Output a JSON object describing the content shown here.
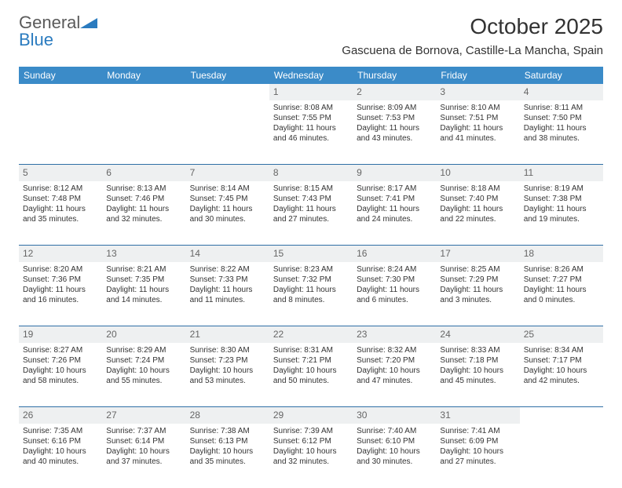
{
  "logo": {
    "text1": "General",
    "text2": "Blue",
    "tri_color": "#2a7bbf"
  },
  "title": "October 2025",
  "location": "Gascuena de Bornova, Castille-La Mancha, Spain",
  "header_bg": "#3b8bc8",
  "dayname_row_bg": "#eef0f1",
  "divider_color": "#2f6fa6",
  "columns": [
    "Sunday",
    "Monday",
    "Tuesday",
    "Wednesday",
    "Thursday",
    "Friday",
    "Saturday"
  ],
  "weeks": [
    [
      null,
      null,
      null,
      {
        "n": "1",
        "sr": "8:08 AM",
        "ss": "7:55 PM",
        "dh": "11",
        "dm": "46"
      },
      {
        "n": "2",
        "sr": "8:09 AM",
        "ss": "7:53 PM",
        "dh": "11",
        "dm": "43"
      },
      {
        "n": "3",
        "sr": "8:10 AM",
        "ss": "7:51 PM",
        "dh": "11",
        "dm": "41"
      },
      {
        "n": "4",
        "sr": "8:11 AM",
        "ss": "7:50 PM",
        "dh": "11",
        "dm": "38"
      }
    ],
    [
      {
        "n": "5",
        "sr": "8:12 AM",
        "ss": "7:48 PM",
        "dh": "11",
        "dm": "35"
      },
      {
        "n": "6",
        "sr": "8:13 AM",
        "ss": "7:46 PM",
        "dh": "11",
        "dm": "32"
      },
      {
        "n": "7",
        "sr": "8:14 AM",
        "ss": "7:45 PM",
        "dh": "11",
        "dm": "30"
      },
      {
        "n": "8",
        "sr": "8:15 AM",
        "ss": "7:43 PM",
        "dh": "11",
        "dm": "27"
      },
      {
        "n": "9",
        "sr": "8:17 AM",
        "ss": "7:41 PM",
        "dh": "11",
        "dm": "24"
      },
      {
        "n": "10",
        "sr": "8:18 AM",
        "ss": "7:40 PM",
        "dh": "11",
        "dm": "22"
      },
      {
        "n": "11",
        "sr": "8:19 AM",
        "ss": "7:38 PM",
        "dh": "11",
        "dm": "19"
      }
    ],
    [
      {
        "n": "12",
        "sr": "8:20 AM",
        "ss": "7:36 PM",
        "dh": "11",
        "dm": "16"
      },
      {
        "n": "13",
        "sr": "8:21 AM",
        "ss": "7:35 PM",
        "dh": "11",
        "dm": "14"
      },
      {
        "n": "14",
        "sr": "8:22 AM",
        "ss": "7:33 PM",
        "dh": "11",
        "dm": "11"
      },
      {
        "n": "15",
        "sr": "8:23 AM",
        "ss": "7:32 PM",
        "dh": "11",
        "dm": "8"
      },
      {
        "n": "16",
        "sr": "8:24 AM",
        "ss": "7:30 PM",
        "dh": "11",
        "dm": "6"
      },
      {
        "n": "17",
        "sr": "8:25 AM",
        "ss": "7:29 PM",
        "dh": "11",
        "dm": "3"
      },
      {
        "n": "18",
        "sr": "8:26 AM",
        "ss": "7:27 PM",
        "dh": "11",
        "dm": "0"
      }
    ],
    [
      {
        "n": "19",
        "sr": "8:27 AM",
        "ss": "7:26 PM",
        "dh": "10",
        "dm": "58"
      },
      {
        "n": "20",
        "sr": "8:29 AM",
        "ss": "7:24 PM",
        "dh": "10",
        "dm": "55"
      },
      {
        "n": "21",
        "sr": "8:30 AM",
        "ss": "7:23 PM",
        "dh": "10",
        "dm": "53"
      },
      {
        "n": "22",
        "sr": "8:31 AM",
        "ss": "7:21 PM",
        "dh": "10",
        "dm": "50"
      },
      {
        "n": "23",
        "sr": "8:32 AM",
        "ss": "7:20 PM",
        "dh": "10",
        "dm": "47"
      },
      {
        "n": "24",
        "sr": "8:33 AM",
        "ss": "7:18 PM",
        "dh": "10",
        "dm": "45"
      },
      {
        "n": "25",
        "sr": "8:34 AM",
        "ss": "7:17 PM",
        "dh": "10",
        "dm": "42"
      }
    ],
    [
      {
        "n": "26",
        "sr": "7:35 AM",
        "ss": "6:16 PM",
        "dh": "10",
        "dm": "40"
      },
      {
        "n": "27",
        "sr": "7:37 AM",
        "ss": "6:14 PM",
        "dh": "10",
        "dm": "37"
      },
      {
        "n": "28",
        "sr": "7:38 AM",
        "ss": "6:13 PM",
        "dh": "10",
        "dm": "35"
      },
      {
        "n": "29",
        "sr": "7:39 AM",
        "ss": "6:12 PM",
        "dh": "10",
        "dm": "32"
      },
      {
        "n": "30",
        "sr": "7:40 AM",
        "ss": "6:10 PM",
        "dh": "10",
        "dm": "30"
      },
      {
        "n": "31",
        "sr": "7:41 AM",
        "ss": "6:09 PM",
        "dh": "10",
        "dm": "27"
      },
      null
    ]
  ],
  "labels": {
    "sunrise": "Sunrise:",
    "sunset": "Sunset:",
    "daylight1": "Daylight:",
    "hours": "hours",
    "and": "and",
    "minutes": "minutes."
  }
}
